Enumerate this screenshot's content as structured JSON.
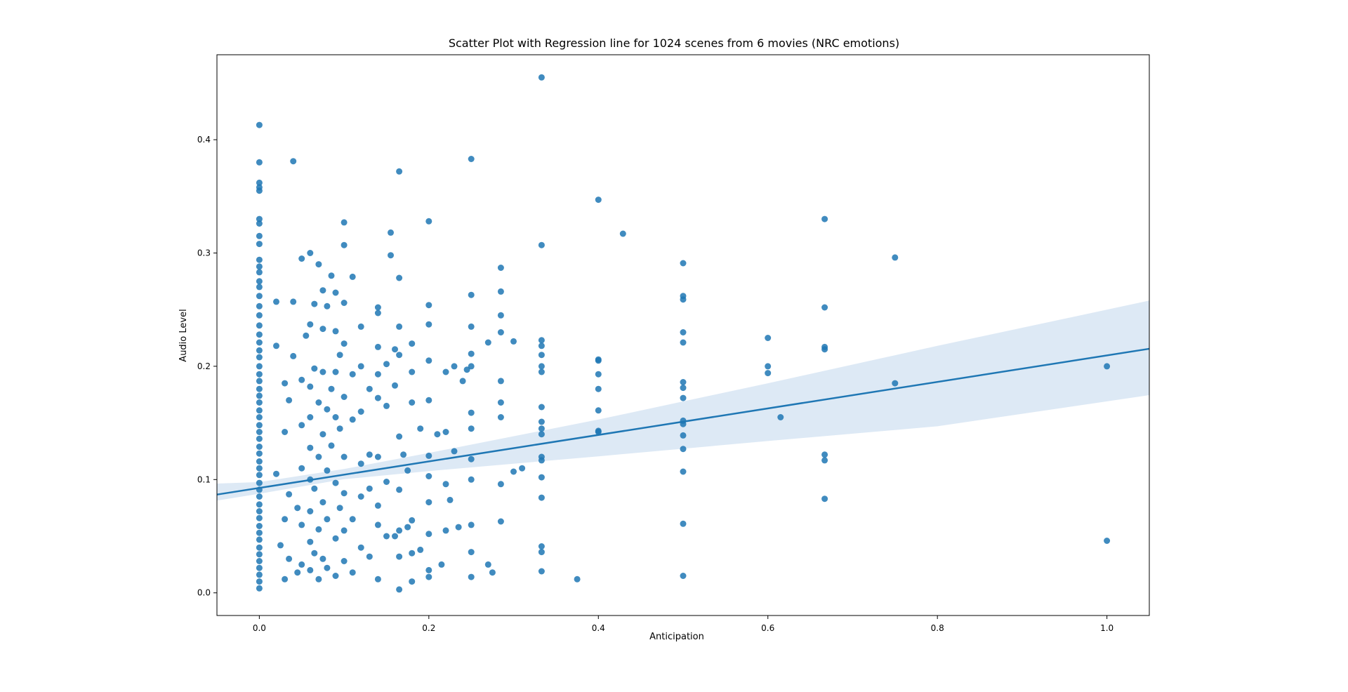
{
  "chart_data": {
    "type": "scatter",
    "title": "Scatter Plot with Regression line for 1024 scenes from 6 movies (NRC emotions)",
    "xlabel": "Anticipation",
    "ylabel": "Audio Level",
    "xlim": [
      -0.05,
      1.05
    ],
    "ylim": [
      -0.02,
      0.475
    ],
    "xticks": [
      0.0,
      0.2,
      0.4,
      0.6,
      0.8,
      1.0
    ],
    "xtick_labels": [
      "0.0",
      "0.2",
      "0.4",
      "0.6",
      "0.8",
      "1.0"
    ],
    "yticks": [
      0.0,
      0.1,
      0.2,
      0.3,
      0.4
    ],
    "ytick_labels": [
      "0.0",
      "0.1",
      "0.2",
      "0.3",
      "0.4"
    ],
    "grid": false,
    "colors": {
      "points": "#1f77b4",
      "line": "#1f77b4",
      "band": "#c6dbef"
    },
    "series": [
      {
        "points": [
          [
            0.0,
            0.413
          ],
          [
            0.0,
            0.38
          ],
          [
            0.0,
            0.362
          ],
          [
            0.0,
            0.358
          ],
          [
            0.0,
            0.355
          ],
          [
            0.0,
            0.33
          ],
          [
            0.0,
            0.326
          ],
          [
            0.0,
            0.315
          ],
          [
            0.0,
            0.308
          ],
          [
            0.0,
            0.294
          ],
          [
            0.0,
            0.288
          ],
          [
            0.0,
            0.283
          ],
          [
            0.0,
            0.275
          ],
          [
            0.0,
            0.27
          ],
          [
            0.0,
            0.262
          ],
          [
            0.0,
            0.253
          ],
          [
            0.0,
            0.245
          ],
          [
            0.0,
            0.236
          ],
          [
            0.0,
            0.228
          ],
          [
            0.0,
            0.221
          ],
          [
            0.0,
            0.214
          ],
          [
            0.0,
            0.208
          ],
          [
            0.0,
            0.2
          ],
          [
            0.0,
            0.193
          ],
          [
            0.0,
            0.187
          ],
          [
            0.0,
            0.18
          ],
          [
            0.0,
            0.174
          ],
          [
            0.0,
            0.168
          ],
          [
            0.0,
            0.161
          ],
          [
            0.0,
            0.155
          ],
          [
            0.0,
            0.148
          ],
          [
            0.0,
            0.142
          ],
          [
            0.0,
            0.136
          ],
          [
            0.0,
            0.129
          ],
          [
            0.0,
            0.123
          ],
          [
            0.0,
            0.116
          ],
          [
            0.0,
            0.11
          ],
          [
            0.0,
            0.104
          ],
          [
            0.0,
            0.097
          ],
          [
            0.0,
            0.091
          ],
          [
            0.0,
            0.085
          ],
          [
            0.0,
            0.078
          ],
          [
            0.0,
            0.072
          ],
          [
            0.0,
            0.066
          ],
          [
            0.0,
            0.059
          ],
          [
            0.0,
            0.053
          ],
          [
            0.0,
            0.047
          ],
          [
            0.0,
            0.04
          ],
          [
            0.0,
            0.034
          ],
          [
            0.0,
            0.028
          ],
          [
            0.0,
            0.022
          ],
          [
            0.0,
            0.016
          ],
          [
            0.0,
            0.01
          ],
          [
            0.0,
            0.004
          ],
          [
            0.02,
            0.257
          ],
          [
            0.02,
            0.218
          ],
          [
            0.02,
            0.105
          ],
          [
            0.025,
            0.042
          ],
          [
            0.03,
            0.185
          ],
          [
            0.03,
            0.142
          ],
          [
            0.03,
            0.065
          ],
          [
            0.03,
            0.012
          ],
          [
            0.035,
            0.17
          ],
          [
            0.035,
            0.087
          ],
          [
            0.035,
            0.03
          ],
          [
            0.04,
            0.257
          ],
          [
            0.04,
            0.381
          ],
          [
            0.04,
            0.209
          ],
          [
            0.045,
            0.075
          ],
          [
            0.045,
            0.018
          ],
          [
            0.05,
            0.295
          ],
          [
            0.05,
            0.188
          ],
          [
            0.05,
            0.148
          ],
          [
            0.05,
            0.11
          ],
          [
            0.05,
            0.06
          ],
          [
            0.05,
            0.025
          ],
          [
            0.055,
            0.227
          ],
          [
            0.06,
            0.3
          ],
          [
            0.06,
            0.237
          ],
          [
            0.06,
            0.182
          ],
          [
            0.06,
            0.155
          ],
          [
            0.06,
            0.128
          ],
          [
            0.06,
            0.1
          ],
          [
            0.06,
            0.072
          ],
          [
            0.06,
            0.045
          ],
          [
            0.06,
            0.02
          ],
          [
            0.065,
            0.255
          ],
          [
            0.065,
            0.198
          ],
          [
            0.065,
            0.092
          ],
          [
            0.065,
            0.035
          ],
          [
            0.07,
            0.29
          ],
          [
            0.07,
            0.168
          ],
          [
            0.07,
            0.12
          ],
          [
            0.07,
            0.056
          ],
          [
            0.07,
            0.012
          ],
          [
            0.075,
            0.267
          ],
          [
            0.075,
            0.233
          ],
          [
            0.075,
            0.195
          ],
          [
            0.075,
            0.14
          ],
          [
            0.075,
            0.08
          ],
          [
            0.075,
            0.03
          ],
          [
            0.08,
            0.253
          ],
          [
            0.08,
            0.162
          ],
          [
            0.08,
            0.108
          ],
          [
            0.08,
            0.065
          ],
          [
            0.08,
            0.022
          ],
          [
            0.085,
            0.28
          ],
          [
            0.085,
            0.18
          ],
          [
            0.085,
            0.13
          ],
          [
            0.09,
            0.265
          ],
          [
            0.09,
            0.231
          ],
          [
            0.09,
            0.195
          ],
          [
            0.09,
            0.155
          ],
          [
            0.09,
            0.097
          ],
          [
            0.09,
            0.048
          ],
          [
            0.09,
            0.015
          ],
          [
            0.095,
            0.21
          ],
          [
            0.095,
            0.145
          ],
          [
            0.095,
            0.075
          ],
          [
            0.1,
            0.327
          ],
          [
            0.1,
            0.307
          ],
          [
            0.1,
            0.256
          ],
          [
            0.1,
            0.22
          ],
          [
            0.1,
            0.173
          ],
          [
            0.1,
            0.12
          ],
          [
            0.1,
            0.088
          ],
          [
            0.1,
            0.055
          ],
          [
            0.1,
            0.028
          ],
          [
            0.11,
            0.279
          ],
          [
            0.11,
            0.193
          ],
          [
            0.11,
            0.153
          ],
          [
            0.11,
            0.065
          ],
          [
            0.11,
            0.018
          ],
          [
            0.12,
            0.235
          ],
          [
            0.12,
            0.2
          ],
          [
            0.12,
            0.16
          ],
          [
            0.12,
            0.114
          ],
          [
            0.12,
            0.085
          ],
          [
            0.12,
            0.04
          ],
          [
            0.13,
            0.18
          ],
          [
            0.13,
            0.122
          ],
          [
            0.13,
            0.092
          ],
          [
            0.13,
            0.032
          ],
          [
            0.14,
            0.252
          ],
          [
            0.14,
            0.247
          ],
          [
            0.14,
            0.217
          ],
          [
            0.14,
            0.193
          ],
          [
            0.14,
            0.172
          ],
          [
            0.14,
            0.12
          ],
          [
            0.14,
            0.077
          ],
          [
            0.14,
            0.06
          ],
          [
            0.14,
            0.012
          ],
          [
            0.15,
            0.202
          ],
          [
            0.15,
            0.165
          ],
          [
            0.15,
            0.098
          ],
          [
            0.15,
            0.05
          ],
          [
            0.155,
            0.318
          ],
          [
            0.155,
            0.298
          ],
          [
            0.16,
            0.215
          ],
          [
            0.16,
            0.183
          ],
          [
            0.16,
            0.05
          ],
          [
            0.165,
            0.372
          ],
          [
            0.165,
            0.278
          ],
          [
            0.165,
            0.235
          ],
          [
            0.165,
            0.21
          ],
          [
            0.165,
            0.138
          ],
          [
            0.165,
            0.091
          ],
          [
            0.165,
            0.055
          ],
          [
            0.165,
            0.032
          ],
          [
            0.165,
            0.003
          ],
          [
            0.17,
            0.122
          ],
          [
            0.175,
            0.108
          ],
          [
            0.175,
            0.058
          ],
          [
            0.18,
            0.22
          ],
          [
            0.18,
            0.195
          ],
          [
            0.18,
            0.168
          ],
          [
            0.18,
            0.064
          ],
          [
            0.18,
            0.035
          ],
          [
            0.18,
            0.01
          ],
          [
            0.19,
            0.145
          ],
          [
            0.19,
            0.038
          ],
          [
            0.2,
            0.328
          ],
          [
            0.2,
            0.254
          ],
          [
            0.2,
            0.237
          ],
          [
            0.2,
            0.205
          ],
          [
            0.2,
            0.17
          ],
          [
            0.2,
            0.121
          ],
          [
            0.2,
            0.103
          ],
          [
            0.2,
            0.08
          ],
          [
            0.2,
            0.052
          ],
          [
            0.2,
            0.02
          ],
          [
            0.2,
            0.014
          ],
          [
            0.21,
            0.14
          ],
          [
            0.215,
            0.025
          ],
          [
            0.22,
            0.195
          ],
          [
            0.22,
            0.142
          ],
          [
            0.22,
            0.096
          ],
          [
            0.22,
            0.055
          ],
          [
            0.225,
            0.082
          ],
          [
            0.23,
            0.2
          ],
          [
            0.23,
            0.125
          ],
          [
            0.235,
            0.058
          ],
          [
            0.24,
            0.187
          ],
          [
            0.245,
            0.197
          ],
          [
            0.25,
            0.383
          ],
          [
            0.25,
            0.263
          ],
          [
            0.25,
            0.235
          ],
          [
            0.25,
            0.211
          ],
          [
            0.25,
            0.2
          ],
          [
            0.25,
            0.159
          ],
          [
            0.25,
            0.145
          ],
          [
            0.25,
            0.118
          ],
          [
            0.25,
            0.1
          ],
          [
            0.25,
            0.06
          ],
          [
            0.25,
            0.036
          ],
          [
            0.25,
            0.014
          ],
          [
            0.27,
            0.221
          ],
          [
            0.27,
            0.025
          ],
          [
            0.275,
            0.018
          ],
          [
            0.285,
            0.287
          ],
          [
            0.285,
            0.266
          ],
          [
            0.285,
            0.245
          ],
          [
            0.285,
            0.23
          ],
          [
            0.285,
            0.187
          ],
          [
            0.285,
            0.168
          ],
          [
            0.285,
            0.155
          ],
          [
            0.285,
            0.096
          ],
          [
            0.285,
            0.063
          ],
          [
            0.3,
            0.222
          ],
          [
            0.3,
            0.107
          ],
          [
            0.31,
            0.11
          ],
          [
            0.333,
            0.455
          ],
          [
            0.333,
            0.307
          ],
          [
            0.333,
            0.223
          ],
          [
            0.333,
            0.218
          ],
          [
            0.333,
            0.21
          ],
          [
            0.333,
            0.2
          ],
          [
            0.333,
            0.195
          ],
          [
            0.333,
            0.164
          ],
          [
            0.333,
            0.151
          ],
          [
            0.333,
            0.145
          ],
          [
            0.333,
            0.14
          ],
          [
            0.333,
            0.12
          ],
          [
            0.333,
            0.117
          ],
          [
            0.333,
            0.102
          ],
          [
            0.333,
            0.084
          ],
          [
            0.333,
            0.041
          ],
          [
            0.333,
            0.036
          ],
          [
            0.333,
            0.019
          ],
          [
            0.375,
            0.012
          ],
          [
            0.4,
            0.347
          ],
          [
            0.4,
            0.206
          ],
          [
            0.4,
            0.205
          ],
          [
            0.4,
            0.193
          ],
          [
            0.4,
            0.18
          ],
          [
            0.4,
            0.161
          ],
          [
            0.4,
            0.143
          ],
          [
            0.4,
            0.142
          ],
          [
            0.429,
            0.317
          ],
          [
            0.5,
            0.291
          ],
          [
            0.5,
            0.262
          ],
          [
            0.5,
            0.259
          ],
          [
            0.5,
            0.23
          ],
          [
            0.5,
            0.221
          ],
          [
            0.5,
            0.186
          ],
          [
            0.5,
            0.181
          ],
          [
            0.5,
            0.172
          ],
          [
            0.5,
            0.152
          ],
          [
            0.5,
            0.149
          ],
          [
            0.5,
            0.139
          ],
          [
            0.5,
            0.127
          ],
          [
            0.5,
            0.107
          ],
          [
            0.5,
            0.061
          ],
          [
            0.5,
            0.015
          ],
          [
            0.6,
            0.225
          ],
          [
            0.6,
            0.2
          ],
          [
            0.6,
            0.194
          ],
          [
            0.615,
            0.155
          ],
          [
            0.667,
            0.33
          ],
          [
            0.667,
            0.252
          ],
          [
            0.667,
            0.217
          ],
          [
            0.667,
            0.215
          ],
          [
            0.667,
            0.122
          ],
          [
            0.667,
            0.117
          ],
          [
            0.667,
            0.083
          ],
          [
            0.75,
            0.296
          ],
          [
            0.75,
            0.185
          ],
          [
            1.0,
            0.2
          ],
          [
            1.0,
            0.046
          ]
        ]
      }
    ],
    "regression": {
      "intercept": 0.0926,
      "slope": 0.117,
      "band": [
        {
          "x": -0.05,
          "lower": 0.0815,
          "upper": 0.0965
        },
        {
          "x": 0.0,
          "lower": 0.0875,
          "upper": 0.0978
        },
        {
          "x": 0.1,
          "lower": 0.1003,
          "upper": 0.1093
        },
        {
          "x": 0.2,
          "lower": 0.1075,
          "upper": 0.1235
        },
        {
          "x": 0.4,
          "lower": 0.1205,
          "upper": 0.153
        },
        {
          "x": 0.6,
          "lower": 0.134,
          "upper": 0.185
        },
        {
          "x": 0.8,
          "lower": 0.147,
          "upper": 0.218
        },
        {
          "x": 1.05,
          "lower": 0.1745,
          "upper": 0.258
        }
      ]
    }
  }
}
